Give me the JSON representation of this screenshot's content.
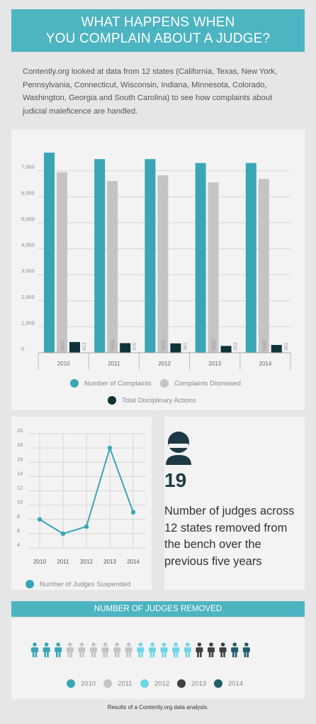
{
  "header": {
    "line1": "WHAT HAPPENS WHEN",
    "line2": "YOU COMPLAIN ABOUT A JUDGE?"
  },
  "intro": "Contently.org looked at data from 12 states (California, Texas, New York, Pennsylvania, Connecticut, Wisconsin, Indiana, Minnesota, Colorado, Washington, Georgia and South Carolina) to see how complaints about judicial maleficence are handled.",
  "colors": {
    "teal": "#3aa6b5",
    "gray": "#c4c4c4",
    "dark": "#0e3338",
    "accent": "#4db4c1",
    "light_teal": "#6dd6e6",
    "charcoal": "#404040",
    "deep_teal": "#1f5f6c"
  },
  "chart_data": [
    {
      "type": "bar",
      "categories": [
        "2010",
        "2011",
        "2012",
        "2013",
        "2014"
      ],
      "series": [
        {
          "name": "Number of Complaints",
          "color": "#3aa6b5",
          "values": [
            7700,
            7450,
            7450,
            7300,
            7300
          ]
        },
        {
          "name": "Complaints Dismissed",
          "color": "#c4c4c4",
          "values": [
            6947,
            6605,
            6826,
            6553,
            6682
          ]
        },
        {
          "name": "Total Disciplinary Actions",
          "color": "#0e3338",
          "values": [
            413,
            370,
            361,
            263,
            301
          ]
        }
      ],
      "value_labels_series_1": [
        "6947",
        "6605",
        "6826",
        "6553",
        "6682"
      ],
      "value_labels_series_2": [
        "413",
        "370",
        "361",
        "263",
        "301"
      ],
      "yticks": [
        "0",
        "1,000",
        "2,000",
        "3,000",
        "4,000",
        "5,000",
        "6,000",
        "7,000"
      ],
      "ylim": [
        0,
        8000
      ],
      "grid": true,
      "legend": "bottom"
    },
    {
      "type": "line",
      "x": [
        "2010",
        "2011",
        "2012",
        "2013",
        "2014"
      ],
      "series": [
        {
          "name": "Number of Judges Suspended",
          "color": "#3aa6b5",
          "values": [
            8,
            6,
            7,
            18,
            9
          ]
        }
      ],
      "yticks": [
        "4",
        "6",
        "8",
        "10",
        "12",
        "14",
        "16",
        "18",
        "20"
      ],
      "ylim": [
        4,
        20
      ],
      "grid": true,
      "legend": "bottom"
    }
  ],
  "stat": {
    "icon": "judge-icon",
    "number": "19",
    "text": "Number of judges across 12 states removed from the bench over the previous five years"
  },
  "removed": {
    "title": "NUMBER OF JUDGES REMOVED",
    "years": [
      {
        "label": "2010",
        "count": 3,
        "color": "#3aa6b5"
      },
      {
        "label": "2011",
        "count": 6,
        "color": "#c4c4c4"
      },
      {
        "label": "2012",
        "count": 5,
        "color": "#6dd6e6"
      },
      {
        "label": "2013",
        "count": 3,
        "color": "#404040"
      },
      {
        "label": "2014",
        "count": 2,
        "color": "#1f5f6c"
      }
    ]
  },
  "footer": "Results of a Contently.org data analysis."
}
